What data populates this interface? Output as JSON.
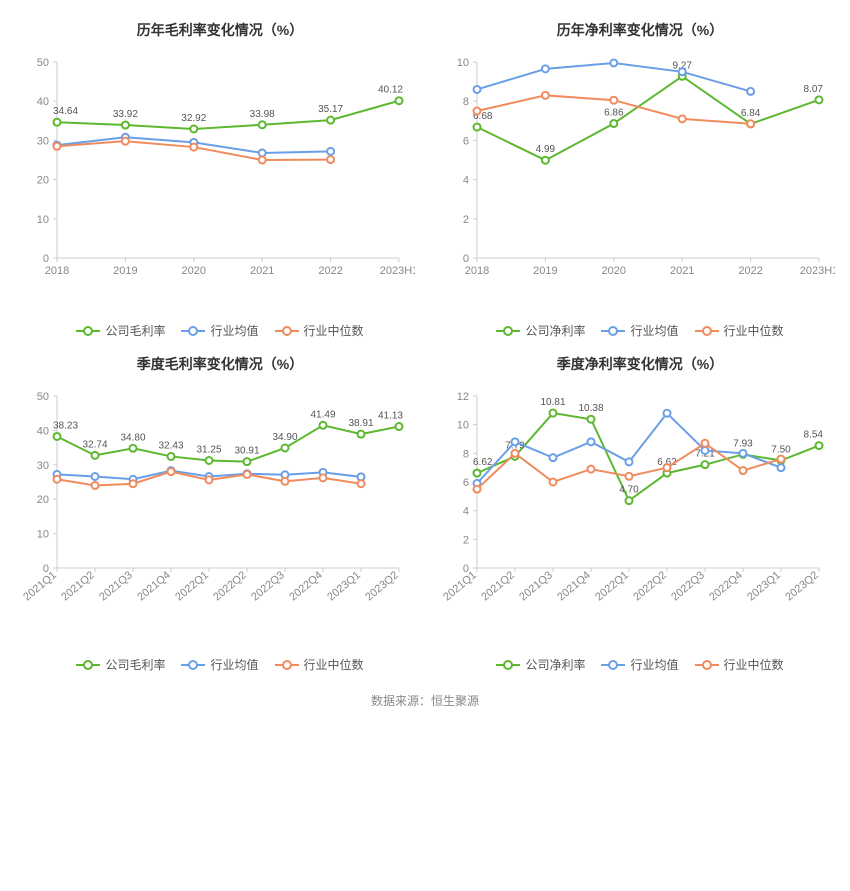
{
  "colors": {
    "company": "#5cb82f",
    "industry_avg": "#6a9fe8",
    "industry_median": "#f08b5e",
    "axis": "#cccccc",
    "axis_text": "#888888",
    "label_text": "#555555",
    "title_text": "#333333",
    "background": "#ffffff"
  },
  "line_width": 2,
  "marker_radius": 3.5,
  "title_fontsize": 14,
  "axis_fontsize": 11,
  "label_fontsize": 10,
  "legend_fontsize": 12,
  "charts": [
    {
      "id": "annual-gross",
      "title": "历年毛利率变化情况（%）",
      "categories": [
        "2018",
        "2019",
        "2020",
        "2021",
        "2022",
        "2023H1"
      ],
      "ylim": [
        0,
        50
      ],
      "ytick_step": 10,
      "x_label_rotate": false,
      "series": [
        {
          "key": "company",
          "name": "公司毛利率",
          "color_key": "company",
          "values": [
            34.64,
            33.92,
            32.92,
            33.98,
            35.17,
            40.12
          ],
          "show_labels": true
        },
        {
          "key": "industry_avg",
          "name": "行业均值",
          "color_key": "industry_avg",
          "values": [
            28.8,
            30.8,
            29.5,
            26.8,
            27.2,
            null
          ],
          "show_labels": false
        },
        {
          "key": "industry_median",
          "name": "行业中位数",
          "color_key": "industry_median",
          "values": [
            28.5,
            29.8,
            28.3,
            25.0,
            25.1,
            null
          ],
          "show_labels": false
        }
      ],
      "legend": [
        "公司毛利率",
        "行业均值",
        "行业中位数"
      ]
    },
    {
      "id": "annual-net",
      "title": "历年净利率变化情况（%）",
      "categories": [
        "2018",
        "2019",
        "2020",
        "2021",
        "2022",
        "2023H1"
      ],
      "ylim": [
        0,
        10
      ],
      "ytick_step": 2,
      "x_label_rotate": false,
      "series": [
        {
          "key": "company",
          "name": "公司净利率",
          "color_key": "company",
          "values": [
            6.68,
            4.99,
            6.86,
            9.27,
            6.84,
            8.07
          ],
          "show_labels": true
        },
        {
          "key": "industry_avg",
          "name": "行业均值",
          "color_key": "industry_avg",
          "values": [
            8.6,
            9.65,
            9.95,
            9.5,
            8.5,
            null
          ],
          "show_labels": false
        },
        {
          "key": "industry_median",
          "name": "行业中位数",
          "color_key": "industry_median",
          "values": [
            7.5,
            8.3,
            8.05,
            7.1,
            6.85,
            null
          ],
          "show_labels": false
        }
      ],
      "legend": [
        "公司净利率",
        "行业均值",
        "行业中位数"
      ]
    },
    {
      "id": "quarter-gross",
      "title": "季度毛利率变化情况（%）",
      "categories": [
        "2021Q1",
        "2021Q2",
        "2021Q3",
        "2021Q4",
        "2022Q1",
        "2022Q2",
        "2022Q3",
        "2022Q4",
        "2023Q1",
        "2023Q2"
      ],
      "ylim": [
        0,
        50
      ],
      "ytick_step": 10,
      "x_label_rotate": true,
      "series": [
        {
          "key": "company",
          "name": "公司毛利率",
          "color_key": "company",
          "values": [
            38.23,
            32.74,
            34.8,
            32.43,
            31.25,
            30.91,
            34.9,
            41.49,
            38.91,
            41.13
          ],
          "show_labels": true
        },
        {
          "key": "industry_avg",
          "name": "行业均值",
          "color_key": "industry_avg",
          "values": [
            27.2,
            26.6,
            25.8,
            28.3,
            26.6,
            27.4,
            27.1,
            27.8,
            26.5,
            null
          ],
          "show_labels": false
        },
        {
          "key": "industry_median",
          "name": "行业中位数",
          "color_key": "industry_median",
          "values": [
            25.8,
            24.0,
            24.5,
            28.0,
            25.6,
            27.2,
            25.2,
            26.2,
            24.5,
            null
          ],
          "show_labels": false
        }
      ],
      "legend": [
        "公司毛利率",
        "行业均值",
        "行业中位数"
      ]
    },
    {
      "id": "quarter-net",
      "title": "季度净利率变化情况（%）",
      "categories": [
        "2021Q1",
        "2021Q2",
        "2021Q3",
        "2021Q4",
        "2022Q1",
        "2022Q2",
        "2022Q3",
        "2022Q4",
        "2023Q1",
        "2023Q2"
      ],
      "ylim": [
        0,
        12
      ],
      "ytick_step": 2,
      "x_label_rotate": true,
      "series": [
        {
          "key": "company",
          "name": "公司净利率",
          "color_key": "company",
          "values": [
            6.62,
            7.79,
            10.81,
            10.38,
            4.7,
            6.62,
            7.21,
            7.93,
            7.5,
            8.54
          ],
          "show_labels": true
        },
        {
          "key": "industry_avg",
          "name": "行业均值",
          "color_key": "industry_avg",
          "values": [
            5.9,
            8.8,
            7.7,
            8.8,
            7.4,
            10.8,
            8.2,
            8.0,
            7.0,
            null
          ],
          "show_labels": false
        },
        {
          "key": "industry_median",
          "name": "行业中位数",
          "color_key": "industry_median",
          "values": [
            5.5,
            8.0,
            6.0,
            6.9,
            6.4,
            7.0,
            8.7,
            6.8,
            7.6,
            null
          ],
          "show_labels": false
        }
      ],
      "legend": [
        "公司净利率",
        "行业均值",
        "行业中位数"
      ]
    }
  ],
  "source_text": "数据来源：恒生聚源"
}
